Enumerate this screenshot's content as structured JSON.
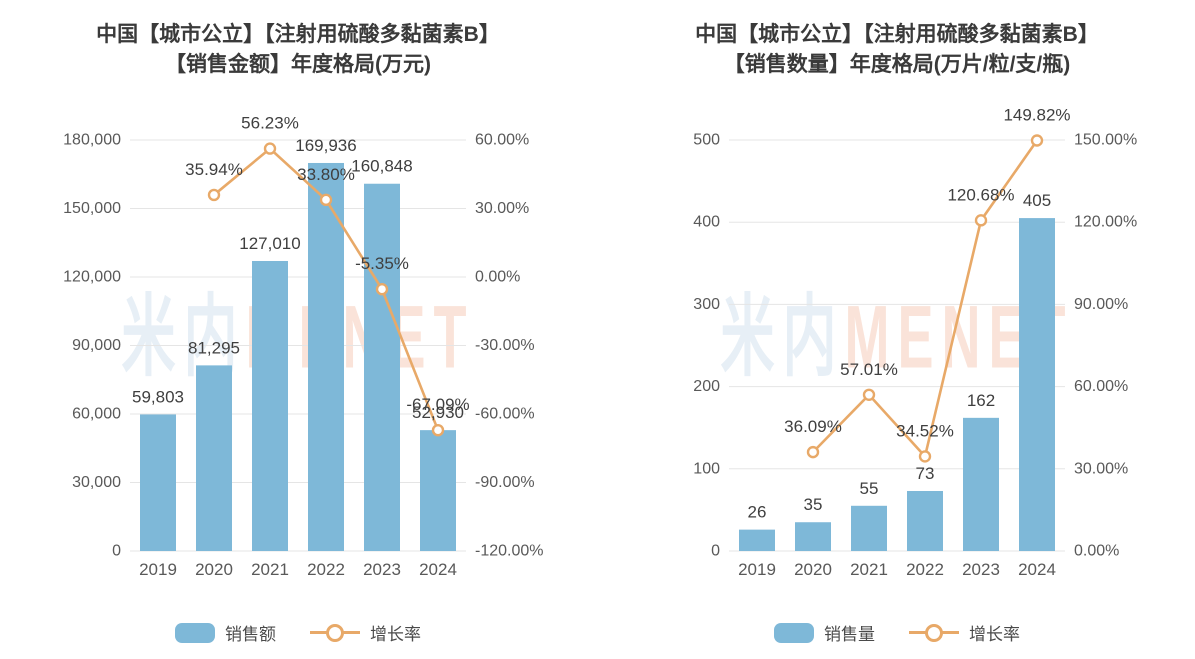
{
  "page": {
    "background": "#ffffff"
  },
  "watermark": {
    "text_cjk": "米内",
    "text_latin": "MENET",
    "color_cjk": "#e7eff6",
    "color_latin": "#fae3d9"
  },
  "colors": {
    "bar": "#7EB8D8",
    "line": "#E8A968",
    "grid": "#e5e5e5",
    "title": "#3a3a3a",
    "axis_label": "#595959",
    "data_label": "#3f3f3f"
  },
  "chart_data": [
    {
      "type": "bar+line",
      "title_line1": "中国【城市公立】【注射用硫酸多黏菌素B】",
      "title_line2": "【销售金额】年度格局(万元)",
      "categories": [
        "2019",
        "2020",
        "2021",
        "2022",
        "2023",
        "2024"
      ],
      "bar_series": {
        "name": "销售额",
        "values": [
          59803,
          81295,
          127010,
          169936,
          160848,
          52930
        ],
        "labels": [
          "59,803",
          "81,295",
          "127,010",
          "169,936",
          "160,848",
          "52,930"
        ]
      },
      "line_series": {
        "name": "增长率",
        "values_pct": [
          null,
          35.94,
          56.23,
          33.8,
          -5.35,
          -67.09
        ],
        "labels": [
          null,
          "35.94%",
          "56.23%",
          "33.80%",
          "-5.35%",
          "-67.09%"
        ]
      },
      "y_left": {
        "min": 0,
        "max": 180000,
        "step": 30000,
        "tick_labels": [
          "180,000",
          "150,000",
          "120,000",
          "90,000",
          "60,000",
          "30,000",
          "0"
        ]
      },
      "y_right": {
        "min": -120,
        "max": 60,
        "step": 30,
        "tick_labels": [
          "60.00%",
          "30.00%",
          "0.00%",
          "-30.00%",
          "-60.00%",
          "-90.00%",
          "-120.00%"
        ]
      },
      "grid": true,
      "legend_position": "bottom",
      "legend": [
        {
          "type": "bar",
          "label": "销售额"
        },
        {
          "type": "line",
          "label": "增长率"
        }
      ]
    },
    {
      "type": "bar+line",
      "title_line1": "中国【城市公立】【注射用硫酸多黏菌素B】",
      "title_line2": "【销售数量】年度格局(万片/粒/支/瓶)",
      "categories": [
        "2019",
        "2020",
        "2021",
        "2022",
        "2023",
        "2024"
      ],
      "bar_series": {
        "name": "销售量",
        "values": [
          26,
          35,
          55,
          73,
          162,
          405
        ],
        "labels": [
          "26",
          "35",
          "55",
          "73",
          "162",
          "405"
        ]
      },
      "line_series": {
        "name": "增长率",
        "values_pct": [
          null,
          36.09,
          57.01,
          34.52,
          120.68,
          149.82
        ],
        "labels": [
          null,
          "36.09%",
          "57.01%",
          "34.52%",
          "120.68%",
          "149.82%"
        ]
      },
      "y_left": {
        "min": 0,
        "max": 500,
        "step": 100,
        "tick_labels": [
          "500",
          "400",
          "300",
          "200",
          "100",
          "0"
        ]
      },
      "y_right": {
        "min": 0,
        "max": 150,
        "step": 30,
        "tick_labels": [
          "150.00%",
          "120.00%",
          "90.00%",
          "60.00%",
          "30.00%",
          "0.00%"
        ]
      },
      "grid": true,
      "legend_position": "bottom",
      "legend": [
        {
          "type": "bar",
          "label": "销售量"
        },
        {
          "type": "line",
          "label": "增长率"
        }
      ]
    }
  ]
}
